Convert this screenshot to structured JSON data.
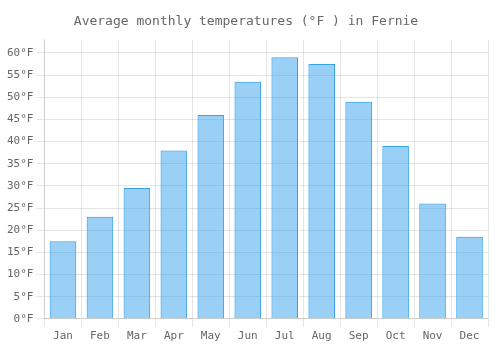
{
  "chart_data": {
    "type": "bar",
    "title": "Average monthly temperatures (°F ) in Fernie",
    "categories": [
      "Jan",
      "Feb",
      "Mar",
      "Apr",
      "May",
      "Jun",
      "Jul",
      "Aug",
      "Sep",
      "Oct",
      "Nov",
      "Dec"
    ],
    "values": [
      17.5,
      23.0,
      29.5,
      38.0,
      46.0,
      53.5,
      59.0,
      57.5,
      49.0,
      39.0,
      26.0,
      18.5
    ],
    "ylim": [
      0,
      63
    ],
    "yticks": [
      {
        "value": 0,
        "label": "0°F"
      },
      {
        "value": 5,
        "label": "5°F"
      },
      {
        "value": 10,
        "label": "10°F"
      },
      {
        "value": 15,
        "label": "15°F"
      },
      {
        "value": 20,
        "label": "20°F"
      },
      {
        "value": 25,
        "label": "25°F"
      },
      {
        "value": 30,
        "label": "30°F"
      },
      {
        "value": 35,
        "label": "35°F"
      },
      {
        "value": 40,
        "label": "40°F"
      },
      {
        "value": 45,
        "label": "45°F"
      },
      {
        "value": 50,
        "label": "50°F"
      },
      {
        "value": 55,
        "label": "55°F"
      },
      {
        "value": 60,
        "label": "60°F"
      }
    ],
    "grid": true
  }
}
